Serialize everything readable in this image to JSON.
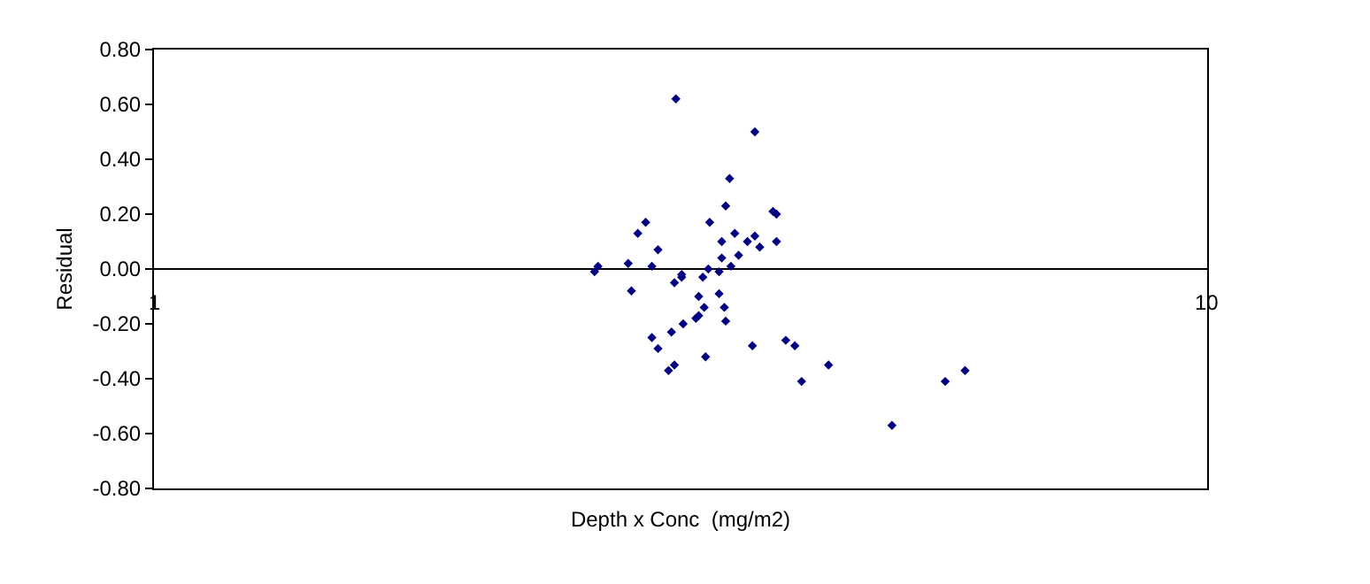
{
  "chart_data": {
    "type": "scatter",
    "xlabel": "Depth x Conc  (mg/m2)",
    "ylabel": "Residual",
    "log": "x",
    "xlim": [
      1,
      10
    ],
    "xticks": [
      1,
      10
    ],
    "ylim": [
      -0.8,
      0.8
    ],
    "yticks": [
      {
        "value": 0.8,
        "label": "0.80"
      },
      {
        "value": 0.6,
        "label": "0.60"
      },
      {
        "value": 0.4,
        "label": "0.40"
      },
      {
        "value": 0.2,
        "label": "0.20"
      },
      {
        "value": 0,
        "label": "0.00"
      },
      {
        "value": -0.2,
        "label": "-0.20"
      },
      {
        "value": -0.4,
        "label": "-0.40"
      },
      {
        "value": -0.6,
        "label": "-0.60"
      },
      {
        "value": -0.8,
        "label": "-0.80"
      }
    ],
    "marker": "diamond",
    "series": [
      {
        "color": "#000080",
        "x": [
          3.13,
          3.72,
          3.52,
          3.49,
          2.93,
          3.37,
          3.87,
          3.9,
          2.88,
          3.56,
          3.72,
          3.66,
          3.46,
          3.9,
          3.76,
          3.01,
          3.59,
          3.46,
          3.53,
          2.82,
          2.97,
          2.62,
          2.64,
          3.36,
          3.17,
          3.44,
          3.32,
          3.17,
          3.12,
          2.84,
          3.29,
          3.44,
          3.33,
          3.48,
          3.27,
          3.29,
          3.18,
          3.49,
          2.97,
          3.1,
          3.01,
          3.34,
          3.08,
          3.12,
          3.7,
          3.98,
          4.06,
          4.37,
          4.12,
          5.02,
          5.64,
          5.89
        ],
        "values": [
          0.62,
          0.5,
          0.33,
          0.23,
          0.17,
          0.17,
          0.21,
          0.2,
          0.13,
          0.13,
          0.12,
          0.1,
          0.1,
          0.1,
          0.08,
          0.07,
          0.05,
          0.04,
          0.01,
          0.02,
          0.01,
          -0.01,
          0.01,
          0.0,
          -0.02,
          -0.01,
          -0.03,
          -0.03,
          -0.05,
          -0.08,
          -0.1,
          -0.09,
          -0.14,
          -0.14,
          -0.18,
          -0.17,
          -0.2,
          -0.19,
          -0.25,
          -0.23,
          -0.29,
          -0.32,
          -0.37,
          -0.35,
          -0.28,
          -0.26,
          -0.28,
          -0.35,
          -0.41,
          -0.57,
          -0.41,
          -0.37
        ]
      }
    ]
  }
}
